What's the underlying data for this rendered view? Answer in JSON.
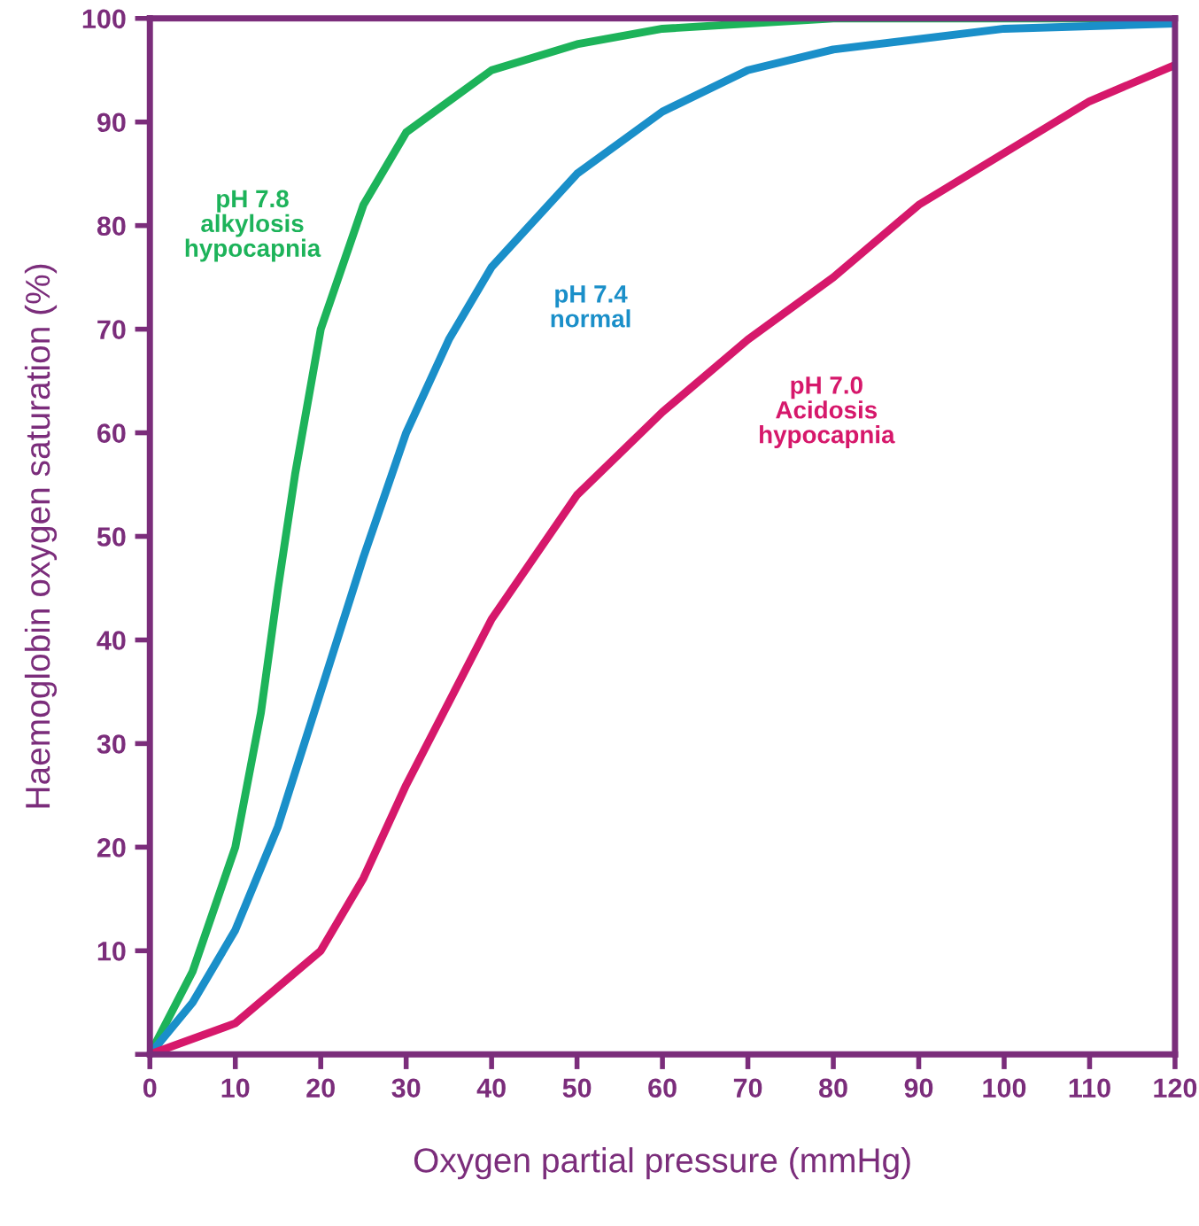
{
  "chart_data": {
    "type": "line",
    "xlabel": "Oxygen partial pressure (mmHg)",
    "ylabel": "Haemoglobin oxygen saturation (%)",
    "xlim": [
      0,
      120
    ],
    "ylim": [
      0,
      100
    ],
    "xticks": [
      0,
      10,
      20,
      30,
      40,
      50,
      60,
      70,
      80,
      90,
      100,
      110,
      120
    ],
    "yticks": [
      {
        "value": 0,
        "label": null
      },
      10,
      20,
      30,
      40,
      50,
      60,
      70,
      80,
      90,
      100
    ],
    "grid": false,
    "legend": false,
    "marker": "none",
    "line_style": "solid",
    "series": [
      {
        "color": "#1db35a",
        "x": [
          0,
          5,
          10,
          13,
          15,
          17,
          20,
          25,
          30,
          40,
          50,
          60,
          80,
          120
        ],
        "values": [
          0,
          8,
          20,
          33,
          45,
          56,
          70,
          82,
          89,
          95,
          97.5,
          99,
          100,
          100
        ]
      },
      {
        "color": "#1a8fc9",
        "x": [
          0,
          5,
          10,
          15,
          20,
          25,
          30,
          35,
          40,
          50,
          60,
          70,
          80,
          100,
          120
        ],
        "values": [
          0,
          5,
          12,
          22,
          35,
          48,
          60,
          69,
          76,
          85,
          91,
          95,
          97,
          99,
          99.5
        ]
      },
      {
        "color": "#d6186b",
        "x": [
          0,
          10,
          20,
          25,
          30,
          40,
          50,
          60,
          70,
          80,
          90,
          100,
          110,
          120
        ],
        "values": [
          0,
          3,
          10,
          17,
          26,
          42,
          54,
          62,
          69,
          75,
          82,
          87,
          92,
          95.5
        ]
      }
    ],
    "annotations": [
      "pH 7.8\nalkylosis\nhypocapnia",
      "pH 7.4\nnormal",
      "pH 7.0\nAcidosis\nhypocapnia"
    ]
  }
}
